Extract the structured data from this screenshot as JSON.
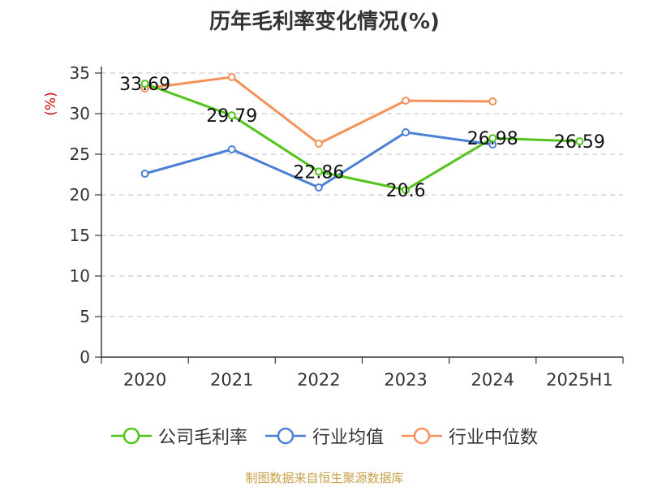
{
  "chart_data": {
    "type": "line",
    "title": "历年毛利率变化情况(%)",
    "ylabel": "(%)",
    "ylim": [
      0,
      35
    ],
    "yticks": [
      0,
      5,
      10,
      15,
      20,
      25,
      30,
      35
    ],
    "categories": [
      "2020",
      "2021",
      "2022",
      "2023",
      "2024",
      "2025H1"
    ],
    "grid": true,
    "legend_position": "bottom",
    "series": [
      {
        "name": "公司毛利率",
        "color": "#52c41a",
        "values": [
          33.69,
          29.79,
          22.86,
          20.6,
          26.98,
          26.59
        ],
        "labels": [
          "33.69",
          "29.79",
          "22.86",
          "20.6",
          "26.98",
          "26.59"
        ]
      },
      {
        "name": "行业均值",
        "color": "#4b7fd6",
        "values": [
          22.6,
          25.6,
          20.9,
          27.7,
          26.2,
          null
        ]
      },
      {
        "name": "行业中位数",
        "color": "#f5915a",
        "values": [
          33.1,
          34.5,
          26.3,
          31.6,
          31.5,
          null
        ]
      }
    ]
  },
  "footer": "制图数据来自恒生聚源数据库"
}
